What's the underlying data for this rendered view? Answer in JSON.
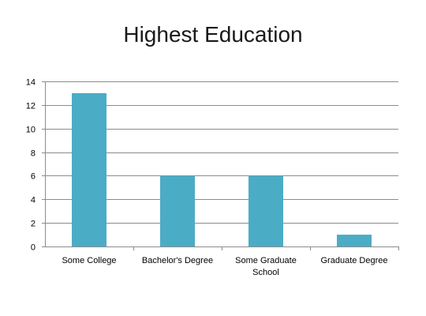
{
  "chart_data": {
    "type": "bar",
    "title": "Highest Education",
    "categories": [
      "Some College",
      "Bachelor's Degree",
      "Some Graduate School",
      "Graduate Degree"
    ],
    "category_lines": [
      [
        "Some College"
      ],
      [
        "Bachelor's Degree"
      ],
      [
        "Some Graduate",
        "School"
      ],
      [
        "Graduate Degree"
      ]
    ],
    "values": [
      13,
      6,
      6,
      1
    ],
    "ylim": [
      0,
      14
    ],
    "yticks": [
      0,
      2,
      4,
      6,
      8,
      10,
      12,
      14
    ],
    "grid": true,
    "legend": false,
    "bar_color": "#4BACC6"
  }
}
